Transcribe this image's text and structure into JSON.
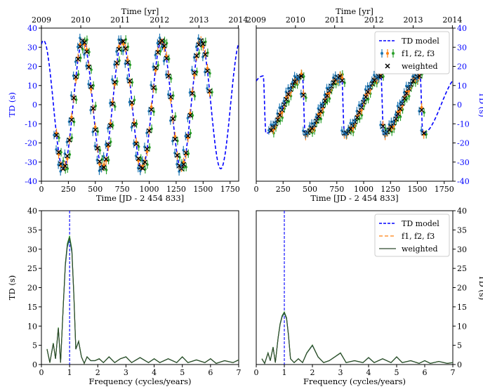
{
  "chart_data": [
    {
      "type": "line",
      "panel": "top-left",
      "xlabel": "Time [JD - 2 454 833]",
      "ylabel": "TD (s)",
      "top_xlabel": "Time [yr]",
      "xlim": [
        0,
        1830
      ],
      "ylim": [
        -40,
        40
      ],
      "xticks": [
        0,
        250,
        500,
        750,
        1000,
        1250,
        1500,
        1750
      ],
      "yticks": [
        -40,
        -30,
        -20,
        -10,
        0,
        10,
        20,
        30,
        40
      ],
      "top_ticks": [
        {
          "value": 0,
          "label": "2009"
        },
        {
          "value": 365,
          "label": "2010"
        },
        {
          "value": 730,
          "label": "2011"
        },
        {
          "value": 1096,
          "label": "2012"
        },
        {
          "value": 1461,
          "label": "2013"
        },
        {
          "value": 1826,
          "label": "2014"
        }
      ],
      "model": {
        "name": "TD model",
        "color": "#0000ff",
        "amplitude": 33.5,
        "period_days": 365.25,
        "phase_peak_day": 20
      },
      "points": {
        "names": [
          "f1, f2, f3",
          "weighted"
        ],
        "colors": [
          "#1f77b4",
          "#ff7f0e",
          "#2ca02c"
        ],
        "marker_color": "#000000",
        "x_start": 140,
        "x_end": 1560,
        "spacing_days": 20
      }
    },
    {
      "type": "line",
      "panel": "top-right",
      "xlabel": "Time [JD - 2 454 833]",
      "ylabel": "TD (s)",
      "top_xlabel": "Time [yr]",
      "xlim": [
        0,
        1830
      ],
      "ylim": [
        -40,
        40
      ],
      "xticks": [
        0,
        250,
        500,
        750,
        1000,
        1250,
        1500,
        1750
      ],
      "yticks": [
        -40,
        -30,
        -20,
        -10,
        0,
        10,
        20,
        30,
        40
      ],
      "top_ticks": [
        {
          "value": 0,
          "label": "2009"
        },
        {
          "value": 365,
          "label": "2010"
        },
        {
          "value": 730,
          "label": "2011"
        },
        {
          "value": 1096,
          "label": "2012"
        },
        {
          "value": 1461,
          "label": "2013"
        },
        {
          "value": 1826,
          "label": "2014"
        }
      ],
      "legend": {
        "position": "top-right",
        "entries": [
          "TD model",
          "f1, f2, f3",
          "weighted"
        ]
      },
      "model": {
        "name": "TD model",
        "color": "#0000ff",
        "amplitude": 15,
        "period_days": 365.25,
        "drop_day": 90,
        "drop_width_days": 25
      },
      "points": {
        "names": [
          "f1, f2, f3",
          "weighted"
        ],
        "colors": [
          "#1f77b4",
          "#ff7f0e",
          "#2ca02c"
        ],
        "marker_color": "#000000",
        "x_start": 140,
        "x_end": 1560,
        "spacing_days": 20
      }
    },
    {
      "type": "line",
      "panel": "bottom-left",
      "xlabel": "Frequency (cycles/years)",
      "ylabel": "TD (s)",
      "xlim": [
        0,
        7
      ],
      "ylim": [
        0,
        40
      ],
      "xticks": [
        0,
        1,
        2,
        3,
        4,
        5,
        6,
        7
      ],
      "yticks": [
        0,
        5,
        10,
        15,
        20,
        25,
        30,
        35,
        40
      ],
      "model_line": {
        "name": "TD model",
        "x": 1.0,
        "color": "#0000ff"
      },
      "series": [
        {
          "name": "f1, f2, f3",
          "colors": [
            "#1f77b4",
            "#ff7f0e",
            "#2ca02c"
          ]
        },
        {
          "name": "weighted",
          "color": "#2d4a2d"
        }
      ],
      "x": [
        0.2,
        0.3,
        0.42,
        0.5,
        0.6,
        0.68,
        0.78,
        0.85,
        0.92,
        1.0,
        1.08,
        1.15,
        1.22,
        1.32,
        1.42,
        1.52,
        1.62,
        1.75,
        1.9,
        2.05,
        2.2,
        2.4,
        2.6,
        2.8,
        3.0,
        3.2,
        3.5,
        3.8,
        4.0,
        4.2,
        4.5,
        4.8,
        5.0,
        5.2,
        5.5,
        5.8,
        6.0,
        6.2,
        6.5,
        6.8,
        7.0
      ],
      "values": [
        4.0,
        0.5,
        5.5,
        1.5,
        9.5,
        0.5,
        16.0,
        26.0,
        31.0,
        33.0,
        29.5,
        18.0,
        4.0,
        6.0,
        2.0,
        0.3,
        2.0,
        1.0,
        1.0,
        1.5,
        0.5,
        2.0,
        0.5,
        1.5,
        2.0,
        0.5,
        1.8,
        0.5,
        1.5,
        0.5,
        1.5,
        0.5,
        2.0,
        0.5,
        1.2,
        0.5,
        1.5,
        0.3,
        1.0,
        0.5,
        1.2
      ]
    },
    {
      "type": "line",
      "panel": "bottom-right",
      "xlabel": "Frequency (cycles/years)",
      "ylabel": "TD (s)",
      "xlim": [
        0,
        7
      ],
      "ylim": [
        0,
        40
      ],
      "xticks": [
        0,
        1,
        2,
        3,
        4,
        5,
        6,
        7
      ],
      "yticks": [
        0,
        5,
        10,
        15,
        20,
        25,
        30,
        35,
        40
      ],
      "legend": {
        "position": "top-right",
        "entries": [
          "TD model",
          "f1, f2, f3",
          "weighted"
        ]
      },
      "model_line": {
        "name": "TD model",
        "x": 1.0,
        "color": "#0000ff"
      },
      "series": [
        {
          "name": "f1, f2, f3",
          "colors": [
            "#1f77b4",
            "#ff7f0e",
            "#2ca02c"
          ]
        },
        {
          "name": "weighted",
          "color": "#2d4a2d"
        }
      ],
      "x": [
        0.2,
        0.3,
        0.42,
        0.5,
        0.6,
        0.68,
        0.78,
        0.85,
        0.92,
        1.0,
        1.08,
        1.15,
        1.22,
        1.35,
        1.5,
        1.65,
        1.8,
        2.0,
        2.2,
        2.4,
        2.6,
        2.8,
        3.0,
        3.2,
        3.5,
        3.8,
        4.0,
        4.2,
        4.5,
        4.8,
        5.0,
        5.2,
        5.5,
        5.8,
        6.0,
        6.2,
        6.5,
        6.8,
        7.0
      ],
      "values": [
        1.5,
        0.3,
        3.0,
        1.0,
        4.5,
        0.5,
        7.0,
        10.5,
        12.5,
        13.5,
        12.0,
        7.5,
        1.5,
        0.5,
        1.5,
        0.5,
        3.0,
        5.0,
        2.0,
        0.5,
        1.0,
        2.0,
        3.0,
        0.5,
        1.0,
        0.5,
        1.8,
        0.5,
        1.5,
        0.5,
        2.0,
        0.5,
        1.0,
        0.3,
        1.0,
        0.3,
        0.8,
        0.3,
        0.5
      ]
    }
  ]
}
